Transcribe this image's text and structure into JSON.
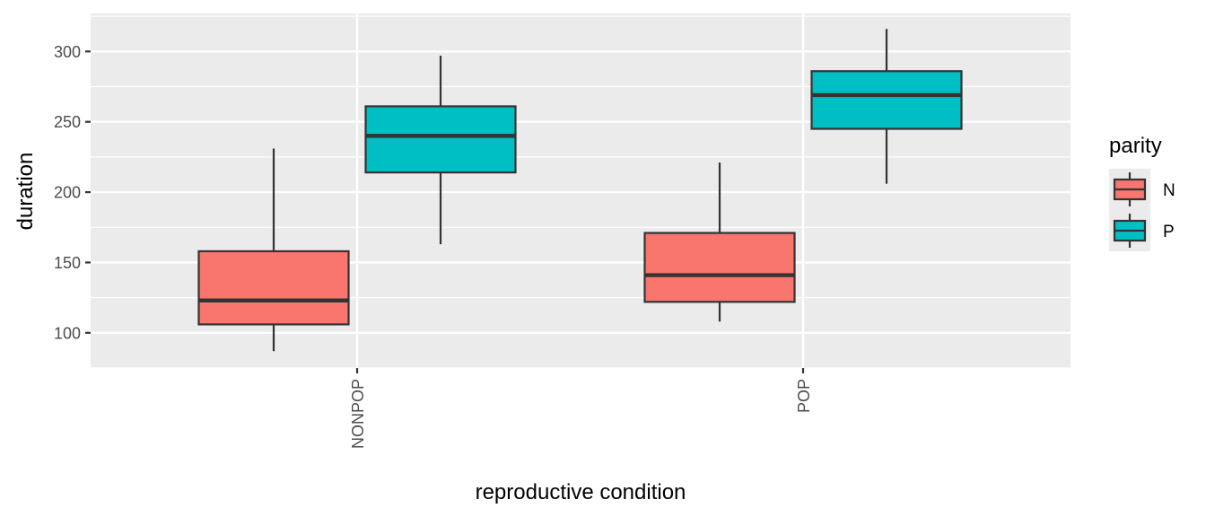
{
  "chart_data": {
    "type": "boxplot",
    "xlabel": "reproductive condition",
    "ylabel": "duration",
    "categories": [
      "NONPOP",
      "POP"
    ],
    "ylim": [
      75,
      327
    ],
    "yticks": [
      100,
      150,
      200,
      250,
      300
    ],
    "grid": true,
    "legend": {
      "title": "parity",
      "position": "right"
    },
    "series": [
      {
        "name": "N",
        "color": "#F8766D",
        "boxes": [
          {
            "category": "NONPOP",
            "whisker_low": 87,
            "q1": 106,
            "median": 123,
            "q3": 158,
            "whisker_high": 231
          },
          {
            "category": "POP",
            "whisker_low": 108,
            "q1": 122,
            "median": 141,
            "q3": 171,
            "whisker_high": 221
          }
        ]
      },
      {
        "name": "P",
        "color": "#00BFC4",
        "boxes": [
          {
            "category": "NONPOP",
            "whisker_low": 163,
            "q1": 214,
            "median": 240,
            "q3": 261,
            "whisker_high": 297
          },
          {
            "category": "POP",
            "whisker_low": 206,
            "q1": 245,
            "median": 269,
            "q3": 286,
            "whisker_high": 316
          }
        ]
      }
    ]
  }
}
